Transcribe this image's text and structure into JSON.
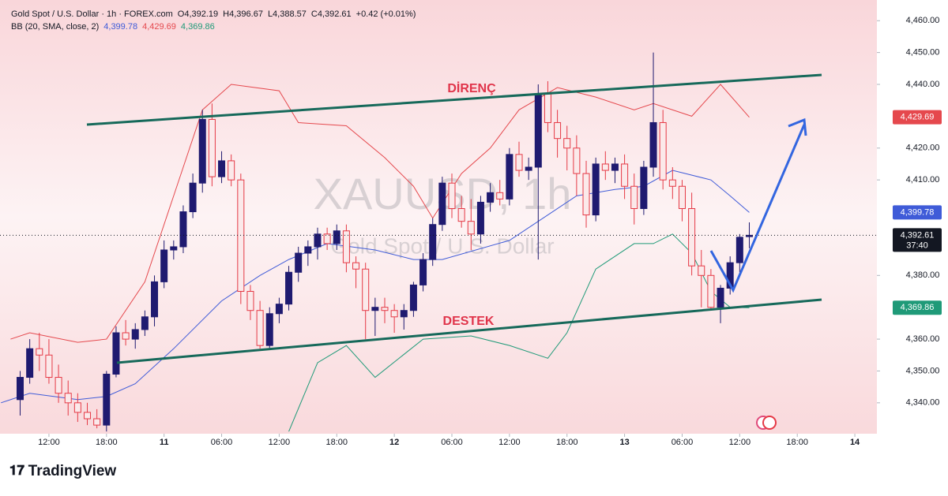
{
  "header": {
    "symbol": "Gold Spot / U.S. Dollar · 1h · FOREX.com",
    "ohlc": [
      "O4,392.19",
      "H4,396.67",
      "L4,388.57",
      "C4,392.61",
      "+0.42 (+0.01%)"
    ]
  },
  "chart_data": {
    "type": "candlestick",
    "watermark": "XAUUSD, 1h",
    "watermark_sub": "Gold Spot / U.S. Dollar",
    "annotations": [
      "DİRENÇ",
      "DESTEK"
    ],
    "up_color": "#1f1a70",
    "down_color": "#e53945",
    "xlim": [
      -3.1,
      88.3
    ],
    "ylim": [
      4330.3,
      4466.5
    ],
    "xticks": [
      {
        "value": 2,
        "label": "12:00"
      },
      {
        "value": 8,
        "label": "18:00"
      },
      {
        "value": 14,
        "label": "11"
      },
      {
        "value": 20,
        "label": "06:00"
      },
      {
        "value": 26,
        "label": "12:00"
      },
      {
        "value": 32,
        "label": "18:00"
      },
      {
        "value": 38,
        "label": "12"
      },
      {
        "value": 44,
        "label": "06:00"
      },
      {
        "value": 50,
        "label": "12:00"
      },
      {
        "value": 56,
        "label": "18:00"
      },
      {
        "value": 62,
        "label": "13"
      },
      {
        "value": 68,
        "label": "06:00"
      },
      {
        "value": 74,
        "label": "12:00"
      },
      {
        "value": 80,
        "label": "18:00"
      },
      {
        "value": 86,
        "label": "14"
      }
    ],
    "yticks": [
      {
        "value": 4460,
        "label": "4,460.00"
      },
      {
        "value": 4450,
        "label": "4,450.00"
      },
      {
        "value": 4440,
        "label": "4,440.00"
      },
      {
        "value": 4420,
        "label": "4,420.00"
      },
      {
        "value": 4410,
        "label": "4,410.00"
      },
      {
        "value": 4380,
        "label": "4,380.00"
      },
      {
        "value": 4360,
        "label": "4,360.00"
      },
      {
        "value": 4350,
        "label": "4,350.00"
      },
      {
        "value": 4340,
        "label": "4,340.00"
      }
    ],
    "candles": {
      "x": [
        -1,
        0,
        1,
        2,
        3,
        4,
        5,
        6,
        7,
        8,
        9,
        10,
        11,
        12,
        13,
        14,
        15,
        16,
        17,
        18,
        19,
        20,
        21,
        22,
        23,
        24,
        25,
        26,
        27,
        28,
        29,
        30,
        31,
        32,
        33,
        34,
        35,
        36,
        37,
        38,
        39,
        40,
        41,
        42,
        43,
        44,
        45,
        46,
        47,
        48,
        49,
        50,
        51,
        52,
        53,
        54,
        55,
        56,
        57,
        58,
        59,
        60,
        61,
        62,
        63,
        64,
        65,
        66,
        67,
        68,
        69,
        70,
        71,
        72,
        73,
        74,
        75
      ],
      "open": [
        4341,
        4348,
        4357,
        4355,
        4348,
        4343,
        4340,
        4337,
        4335,
        4333,
        4349,
        4362,
        4360,
        4363,
        4367,
        4378,
        4388,
        4389,
        4400,
        4409,
        4429,
        4411,
        4416,
        4410,
        4375,
        4369,
        4358,
        4368,
        4371,
        4381,
        4387,
        4389,
        4393,
        4390,
        4394,
        4384,
        4382,
        4369,
        4370,
        4369,
        4367,
        4369,
        4377,
        4385,
        4396,
        4409,
        4401,
        4397,
        4393,
        4403,
        4406,
        4404,
        4418,
        4413,
        4414,
        4437,
        4428,
        4423,
        4420,
        4412,
        4399,
        4415,
        4413,
        4415,
        4408,
        4401,
        4414,
        4428,
        4410,
        4408,
        4401,
        4383,
        4380,
        4370,
        4376,
        4384,
        4392.19
      ],
      "high": [
        4350,
        4360,
        4362,
        4360,
        4352,
        4347,
        4343,
        4340,
        4338,
        4350,
        4364,
        4366,
        4365,
        4369,
        4380,
        4391,
        4391,
        4402,
        4412,
        4432,
        4434,
        4419,
        4418,
        4412,
        4377,
        4372,
        4370,
        4373,
        4383,
        4389,
        4391,
        4395,
        4395,
        4396,
        4396,
        4386,
        4384,
        4373,
        4373,
        4371,
        4371,
        4378,
        4387,
        4398,
        4411,
        4412,
        4405,
        4404,
        4405,
        4409,
        4410,
        4420,
        4422,
        4417,
        4440,
        4441,
        4432,
        4427,
        4424,
        4416,
        4417,
        4419,
        4417,
        4418,
        4412,
        4416,
        4450,
        4432,
        4414,
        4410,
        4406,
        4388,
        4382,
        4377,
        4386,
        4393,
        4396.67
      ],
      "low": [
        4336,
        4346,
        4350,
        4346,
        4340,
        4336,
        4334,
        4333,
        4332,
        4331,
        4348,
        4358,
        4357,
        4361,
        4364,
        4376,
        4385,
        4387,
        4398,
        4406,
        4408,
        4409,
        4408,
        4371,
        4366,
        4357,
        4357,
        4365,
        4369,
        4378,
        4383,
        4385,
        4388,
        4388,
        4381,
        4376,
        4360,
        4361,
        4365,
        4362,
        4363,
        4367,
        4375,
        4383,
        4394,
        4398,
        4395,
        4388,
        4390,
        4400,
        4402,
        4402,
        4411,
        4410,
        4385,
        4425,
        4417,
        4413,
        4405,
        4395,
        4397,
        4410,
        4409,
        4404,
        4396,
        4399,
        4411,
        4407,
        4404,
        4397,
        4380,
        4370,
        4369,
        4365,
        4374,
        4381,
        4388.57
      ],
      "close": [
        4348,
        4357,
        4355,
        4348,
        4343,
        4340,
        4337,
        4335,
        4333,
        4349,
        4362,
        4360,
        4363,
        4367,
        4378,
        4388,
        4389,
        4400,
        4409,
        4429,
        4411,
        4416,
        4410,
        4375,
        4369,
        4358,
        4368,
        4371,
        4381,
        4387,
        4389,
        4393,
        4390,
        4394,
        4384,
        4382,
        4369,
        4370,
        4369,
        4367,
        4369,
        4377,
        4385,
        4396,
        4409,
        4401,
        4397,
        4393,
        4403,
        4406,
        4404,
        4418,
        4413,
        4414,
        4437,
        4428,
        4423,
        4420,
        4412,
        4399,
        4415,
        4413,
        4415,
        4408,
        4401,
        4414,
        4428,
        4410,
        4408,
        4401,
        4383,
        4380,
        4370,
        4376,
        4384,
        4392,
        4392.61
      ],
      "last_label": "4,392.61",
      "countdown": "37:40"
    },
    "bollinger": {
      "label": "BB (20, SMA, close, 2)",
      "series": [
        {
          "color": "#3f5bd8",
          "value_label": "4,399.78",
          "x": [
            -3,
            0,
            5,
            8,
            11,
            15,
            20,
            24,
            27,
            31,
            36,
            40,
            43,
            50,
            53,
            57,
            61,
            64,
            67,
            71,
            73,
            75
          ],
          "values": [
            4340,
            4343,
            4341,
            4342,
            4346,
            4357,
            4372,
            4380,
            4385,
            4390,
            4388,
            4385,
            4385,
            4391,
            4397,
            4405,
            4407,
            4408,
            4413,
            4410,
            4405,
            4399.78
          ]
        },
        {
          "color": "#e5484d",
          "value_label": "4,429.69",
          "x": [
            -2,
            0,
            5,
            8,
            12,
            15,
            18,
            21,
            26,
            28,
            33,
            37,
            40,
            42,
            45,
            48,
            51,
            55,
            59,
            63,
            65,
            69,
            72,
            75
          ],
          "values": [
            4360,
            4362,
            4359,
            4360,
            4378,
            4405,
            4432,
            4440,
            4438,
            4428,
            4427,
            4417,
            4408,
            4398,
            4412,
            4420,
            4432,
            4439,
            4436,
            4432,
            4434,
            4430,
            4440,
            4429.69
          ]
        },
        {
          "color": "#1f9a78",
          "value_label": "4,369.86",
          "x": [
            27,
            30,
            33,
            36,
            41,
            46,
            50,
            54,
            56,
            59,
            63,
            65,
            67,
            69,
            71,
            73,
            75
          ],
          "values": [
            4331,
            4352.6,
            4358,
            4348,
            4360,
            4361,
            4358,
            4354,
            4362,
            4382,
            4390,
            4390,
            4393,
            4387,
            4375,
            4370,
            4369.86
          ]
        }
      ]
    }
  },
  "footer": {
    "brand": "TradingView"
  }
}
